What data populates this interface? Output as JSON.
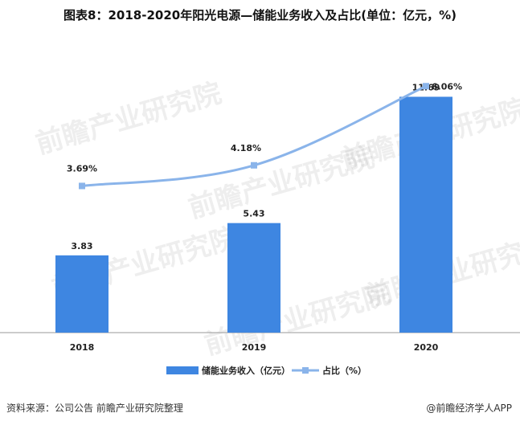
{
  "title": "图表8：2018-2020年阳光电源—储能业务收入及占比(单位：亿元，%)",
  "source": "资料来源：公司公告 前瞻产业研究院整理",
  "brand": "@前瞻经济学人APP",
  "watermark": "前瞻产业研究院",
  "colors": {
    "bar": "#3e86e1",
    "line": "#8ab4ea",
    "axis": "#999999"
  },
  "chart_data": {
    "type": "bar",
    "categories": [
      "2018",
      "2019",
      "2020"
    ],
    "series": [
      {
        "name": "储能业务收入（亿元）",
        "type": "bar",
        "values": [
          3.83,
          5.43,
          11.69
        ],
        "labels": [
          "3.83",
          "5.43",
          "11.69"
        ]
      },
      {
        "name": "占比（%）",
        "type": "line",
        "values": [
          3.69,
          4.18,
          6.06
        ],
        "labels": [
          "3.69%",
          "4.18%",
          "6.06%"
        ]
      }
    ],
    "legend_position": "bottom"
  }
}
